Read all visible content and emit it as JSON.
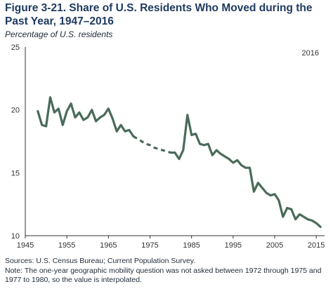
{
  "header": {
    "title": "Figure 3-21. Share of U.S. Residents Who Moved during the Past Year, 1947–2016",
    "subtitle": "Percentage of U.S. residents"
  },
  "footer": {
    "sources": "Sources: U.S. Census Bureau; Current Population Survey.",
    "note": "Note: The one-year geographic mobility question was not asked between 1972 through 1975 and 1977 to 1980, so the value is interpolated."
  },
  "chart_data": {
    "type": "line",
    "title": "Figure 3-21. Share of U.S. Residents Who Moved during the Past Year, 1947–2016",
    "ylabel": "Percentage of U.S. residents",
    "xlim": [
      1945,
      2017
    ],
    "ylim": [
      10,
      25
    ],
    "x_ticks": [
      1945,
      1955,
      1965,
      1975,
      1985,
      1995,
      2005,
      2015
    ],
    "y_ticks": [
      10,
      15,
      20,
      25
    ],
    "annotation": "2016",
    "grid": false,
    "line_color": "#4a6b5a",
    "series": [
      {
        "points": [
          [
            1948,
            19.9
          ],
          [
            1949,
            18.8
          ],
          [
            1950,
            18.7
          ],
          [
            1951,
            21.0
          ],
          [
            1952,
            19.8
          ],
          [
            1953,
            20.1
          ],
          [
            1954,
            18.8
          ],
          [
            1955,
            19.9
          ],
          [
            1956,
            20.5
          ],
          [
            1957,
            19.4
          ],
          [
            1958,
            19.8
          ],
          [
            1959,
            19.2
          ],
          [
            1960,
            19.4
          ],
          [
            1961,
            20.0
          ],
          [
            1962,
            19.1
          ],
          [
            1963,
            19.4
          ],
          [
            1964,
            19.6
          ],
          [
            1965,
            20.1
          ],
          [
            1966,
            19.3
          ],
          [
            1967,
            18.3
          ],
          [
            1968,
            18.8
          ],
          [
            1969,
            18.3
          ],
          [
            1970,
            18.4
          ],
          [
            1971,
            17.9
          ]
        ],
        "style": "solid"
      },
      {
        "points": [
          [
            1971,
            17.9
          ],
          [
            1972,
            17.7
          ],
          [
            1973,
            17.5
          ],
          [
            1974,
            17.3
          ],
          [
            1975,
            17.2
          ],
          [
            1976,
            17.0
          ],
          [
            1977,
            16.9
          ],
          [
            1978,
            16.8
          ],
          [
            1979,
            16.7
          ],
          [
            1980,
            16.6
          ]
        ],
        "style": "dashed"
      },
      {
        "points": [
          [
            1980,
            16.6
          ],
          [
            1981,
            16.6
          ],
          [
            1982,
            16.1
          ],
          [
            1983,
            16.8
          ],
          [
            1984,
            19.6
          ],
          [
            1985,
            18.0
          ],
          [
            1986,
            18.1
          ],
          [
            1987,
            17.3
          ],
          [
            1988,
            17.2
          ],
          [
            1989,
            17.3
          ],
          [
            1990,
            16.4
          ],
          [
            1991,
            16.8
          ],
          [
            1992,
            16.5
          ],
          [
            1993,
            16.3
          ],
          [
            1994,
            16.1
          ],
          [
            1995,
            15.8
          ],
          [
            1996,
            16.0
          ],
          [
            1997,
            15.6
          ],
          [
            1998,
            15.4
          ],
          [
            1999,
            15.4
          ],
          [
            2000,
            13.5
          ],
          [
            2001,
            14.2
          ],
          [
            2002,
            13.8
          ],
          [
            2003,
            13.4
          ],
          [
            2004,
            13.2
          ],
          [
            2005,
            13.3
          ],
          [
            2006,
            12.8
          ],
          [
            2007,
            11.5
          ],
          [
            2008,
            12.2
          ],
          [
            2009,
            12.1
          ],
          [
            2010,
            11.3
          ],
          [
            2011,
            11.7
          ],
          [
            2012,
            11.5
          ],
          [
            2013,
            11.3
          ],
          [
            2014,
            11.2
          ],
          [
            2015,
            11.0
          ],
          [
            2016,
            10.7
          ]
        ],
        "style": "solid"
      }
    ]
  }
}
